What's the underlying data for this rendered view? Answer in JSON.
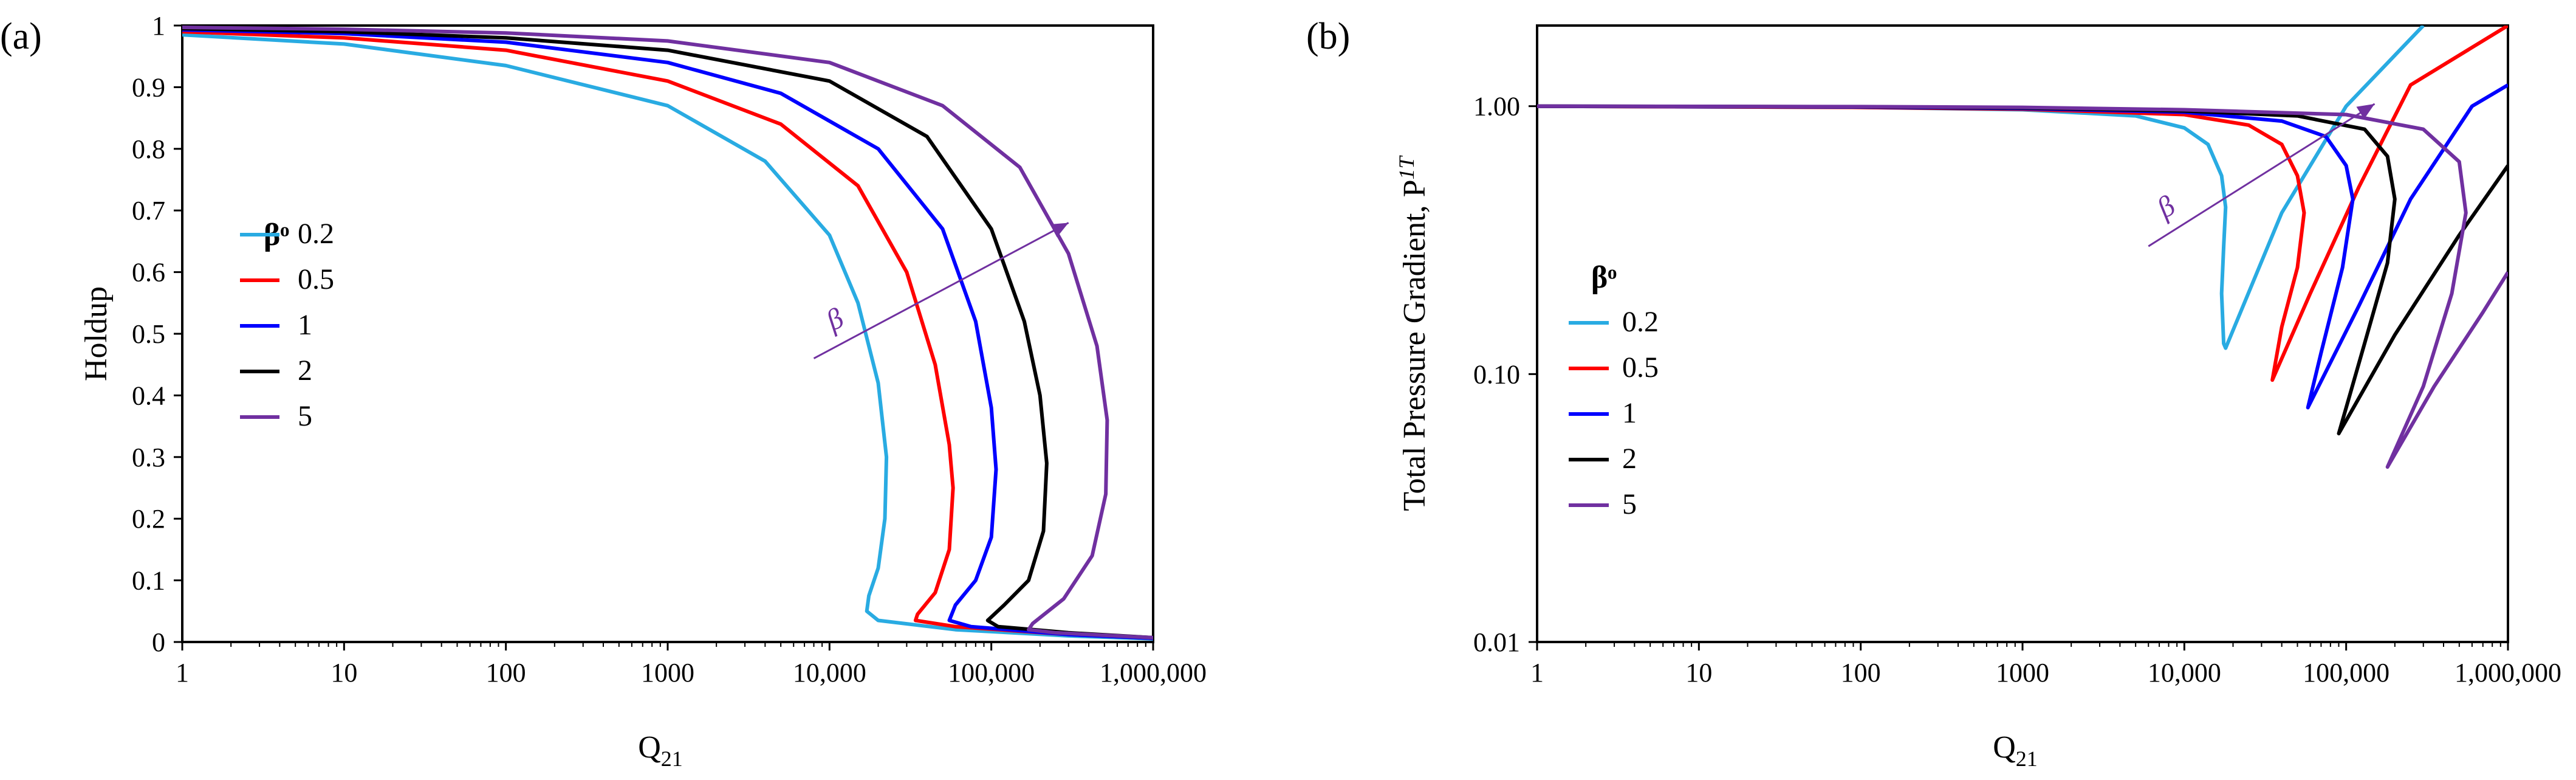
{
  "chart_data": [
    {
      "type": "line",
      "panel_label": "(a)",
      "xlabel_main": "Q",
      "xlabel_sub": "21",
      "ylabel": "Holdup",
      "xscale": "log",
      "xlim": [
        1,
        1000000
      ],
      "ylim": [
        0,
        1
      ],
      "x_tick_values": [
        1,
        10,
        100,
        1000,
        10000,
        100000,
        1000000
      ],
      "x_tick_labels": [
        "1",
        "10",
        "100",
        "1000",
        "10,000",
        "100,000",
        "1,000,000"
      ],
      "y_tick_values": [
        0,
        0.1,
        0.2,
        0.3,
        0.4,
        0.5,
        0.6,
        0.7,
        0.8,
        0.9,
        1
      ],
      "y_tick_labels": [
        "0",
        "0.1",
        "0.2",
        "0.3",
        "0.4",
        "0.5",
        "0.6",
        "0.7",
        "0.8",
        "0.9",
        "1"
      ],
      "legend_title": "βᵒ",
      "annotation_text": "β",
      "annotation_arrow": {
        "from": [
          8000,
          0.46
        ],
        "to": [
          300000,
          0.68
        ]
      },
      "series": [
        {
          "name": "0.2",
          "color": "#29abe2",
          "points": [
            [
              1,
              0.985
            ],
            [
              10,
              0.97
            ],
            [
              100,
              0.935
            ],
            [
              1000,
              0.87
            ],
            [
              4000,
              0.78
            ],
            [
              10000,
              0.66
            ],
            [
              15000,
              0.55
            ],
            [
              20000,
              0.42
            ],
            [
              22500,
              0.3
            ],
            [
              22000,
              0.2
            ],
            [
              20000,
              0.12
            ],
            [
              17500,
              0.075
            ],
            [
              17000,
              0.05
            ],
            [
              20000,
              0.035
            ],
            [
              60000,
              0.02
            ],
            [
              300000,
              0.01
            ],
            [
              1000000,
              0.005
            ]
          ]
        },
        {
          "name": "0.5",
          "color": "#ff0000",
          "points": [
            [
              1,
              0.99
            ],
            [
              10,
              0.98
            ],
            [
              100,
              0.96
            ],
            [
              1000,
              0.91
            ],
            [
              5000,
              0.84
            ],
            [
              15000,
              0.74
            ],
            [
              30000,
              0.6
            ],
            [
              45000,
              0.45
            ],
            [
              55000,
              0.32
            ],
            [
              58000,
              0.25
            ],
            [
              55000,
              0.15
            ],
            [
              45000,
              0.08
            ],
            [
              35000,
              0.045
            ],
            [
              34000,
              0.035
            ],
            [
              60000,
              0.025
            ],
            [
              300000,
              0.012
            ],
            [
              1000000,
              0.006
            ]
          ]
        },
        {
          "name": "1",
          "color": "#0000ff",
          "points": [
            [
              1,
              0.993
            ],
            [
              10,
              0.987
            ],
            [
              100,
              0.973
            ],
            [
              1000,
              0.94
            ],
            [
              5000,
              0.89
            ],
            [
              20000,
              0.8
            ],
            [
              50000,
              0.67
            ],
            [
              80000,
              0.52
            ],
            [
              100000,
              0.38
            ],
            [
              107000,
              0.28
            ],
            [
              100000,
              0.17
            ],
            [
              80000,
              0.1
            ],
            [
              60000,
              0.06
            ],
            [
              55000,
              0.035
            ],
            [
              75000,
              0.025
            ],
            [
              300000,
              0.012
            ],
            [
              1000000,
              0.006
            ]
          ]
        },
        {
          "name": "2",
          "color": "#000000",
          "points": [
            [
              1,
              0.995
            ],
            [
              10,
              0.99
            ],
            [
              100,
              0.98
            ],
            [
              1000,
              0.96
            ],
            [
              10000,
              0.91
            ],
            [
              40000,
              0.82
            ],
            [
              100000,
              0.67
            ],
            [
              160000,
              0.52
            ],
            [
              200000,
              0.4
            ],
            [
              220000,
              0.29
            ],
            [
              210000,
              0.18
            ],
            [
              170000,
              0.1
            ],
            [
              120000,
              0.06
            ],
            [
              95000,
              0.035
            ],
            [
              110000,
              0.025
            ],
            [
              300000,
              0.015
            ],
            [
              1000000,
              0.007
            ]
          ]
        },
        {
          "name": "5",
          "color": "#7030a0",
          "points": [
            [
              1,
              0.997
            ],
            [
              10,
              0.994
            ],
            [
              100,
              0.988
            ],
            [
              1000,
              0.975
            ],
            [
              10000,
              0.94
            ],
            [
              50000,
              0.87
            ],
            [
              150000,
              0.77
            ],
            [
              300000,
              0.63
            ],
            [
              450000,
              0.48
            ],
            [
              520000,
              0.36
            ],
            [
              510000,
              0.24
            ],
            [
              420000,
              0.14
            ],
            [
              280000,
              0.07
            ],
            [
              180000,
              0.03
            ],
            [
              170000,
              0.02
            ],
            [
              250000,
              0.015
            ],
            [
              1000000,
              0.007
            ]
          ]
        }
      ]
    },
    {
      "type": "line",
      "panel_label": "(b)",
      "xlabel_main": "Q",
      "xlabel_sub": "21",
      "ylabel_main": "Total Pressure Gradient, P",
      "ylabel_sup": "1T",
      "xscale": "log",
      "yscale": "log",
      "xlim": [
        1,
        1000000
      ],
      "ylim": [
        0.01,
        2
      ],
      "x_tick_values": [
        1,
        10,
        100,
        1000,
        10000,
        100000,
        1000000
      ],
      "x_tick_labels": [
        "1",
        "10",
        "100",
        "1000",
        "10,000",
        "100,000",
        "1,000,000"
      ],
      "y_tick_values": [
        0.01,
        0.1,
        1
      ],
      "y_tick_labels": [
        "0.01",
        "0.10",
        "1.00"
      ],
      "legend_title": "βᵒ",
      "annotation_text": "β",
      "annotation_arrow": {
        "from": [
          6000,
          0.3
        ],
        "to": [
          150000,
          1.02
        ]
      },
      "series": [
        {
          "name": "0.2",
          "color": "#29abe2",
          "points": [
            [
              1,
              1
            ],
            [
              100,
              0.99
            ],
            [
              1000,
              0.97
            ],
            [
              5000,
              0.92
            ],
            [
              10000,
              0.83
            ],
            [
              14000,
              0.72
            ],
            [
              17000,
              0.55
            ],
            [
              18000,
              0.42
            ],
            [
              17500,
              0.3
            ],
            [
              17000,
              0.2
            ],
            [
              17500,
              0.13
            ],
            [
              18000,
              0.125
            ],
            [
              40000,
              0.4
            ],
            [
              100000,
              1.0
            ],
            [
              300000,
              2
            ]
          ]
        },
        {
          "name": "0.5",
          "color": "#ff0000",
          "points": [
            [
              1,
              1
            ],
            [
              100,
              0.99
            ],
            [
              1000,
              0.975
            ],
            [
              10000,
              0.93
            ],
            [
              25000,
              0.85
            ],
            [
              40000,
              0.72
            ],
            [
              50000,
              0.55
            ],
            [
              55000,
              0.4
            ],
            [
              50000,
              0.25
            ],
            [
              40000,
              0.15
            ],
            [
              35000,
              0.095
            ],
            [
              60000,
              0.2
            ],
            [
              120000,
              0.5
            ],
            [
              250000,
              1.2
            ],
            [
              1000000,
              2
            ]
          ]
        },
        {
          "name": "1",
          "color": "#0000ff",
          "points": [
            [
              1,
              1
            ],
            [
              100,
              0.993
            ],
            [
              1000,
              0.98
            ],
            [
              10000,
              0.95
            ],
            [
              40000,
              0.88
            ],
            [
              75000,
              0.77
            ],
            [
              100000,
              0.6
            ],
            [
              110000,
              0.45
            ],
            [
              95000,
              0.25
            ],
            [
              70000,
              0.12
            ],
            [
              58000,
              0.075
            ],
            [
              120000,
              0.18
            ],
            [
              250000,
              0.45
            ],
            [
              600000,
              1.0
            ],
            [
              1000000,
              1.2
            ]
          ]
        },
        {
          "name": "2",
          "color": "#000000",
          "points": [
            [
              1,
              1
            ],
            [
              100,
              0.995
            ],
            [
              1000,
              0.985
            ],
            [
              10000,
              0.96
            ],
            [
              50000,
              0.92
            ],
            [
              130000,
              0.82
            ],
            [
              180000,
              0.65
            ],
            [
              200000,
              0.45
            ],
            [
              180000,
              0.26
            ],
            [
              130000,
              0.13
            ],
            [
              90000,
              0.06
            ],
            [
              200000,
              0.14
            ],
            [
              500000,
              0.33
            ],
            [
              1000000,
              0.6
            ]
          ]
        },
        {
          "name": "5",
          "color": "#7030a0",
          "points": [
            [
              1,
              1
            ],
            [
              100,
              0.996
            ],
            [
              1000,
              0.99
            ],
            [
              10000,
              0.97
            ],
            [
              100000,
              0.93
            ],
            [
              300000,
              0.82
            ],
            [
              500000,
              0.62
            ],
            [
              550000,
              0.4
            ],
            [
              450000,
              0.2
            ],
            [
              300000,
              0.09
            ],
            [
              180000,
              0.045
            ],
            [
              350000,
              0.09
            ],
            [
              700000,
              0.17
            ],
            [
              1000000,
              0.24
            ]
          ]
        }
      ]
    }
  ]
}
